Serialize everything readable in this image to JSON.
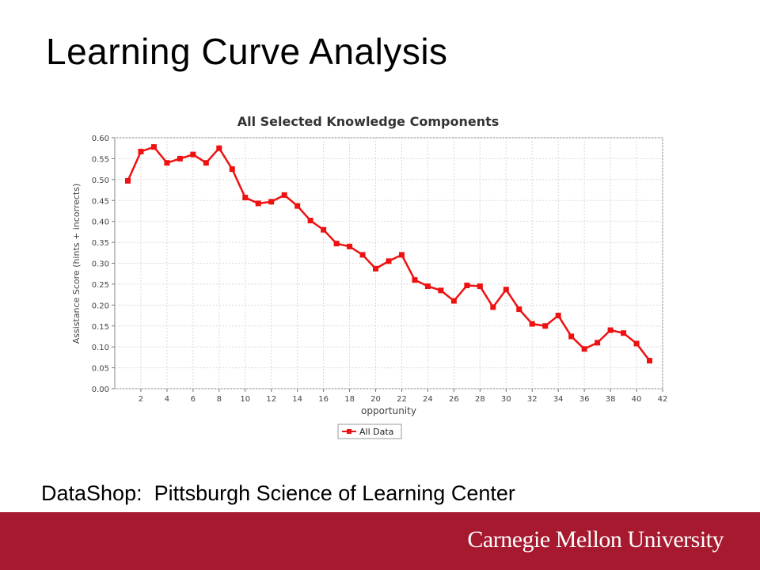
{
  "slide": {
    "title": "Learning Curve Analysis",
    "caption": "DataShop:  Pittsburgh Science of Learning Center",
    "brand": "Carnegie Mellon University"
  },
  "colors": {
    "series": "#ee1111",
    "footer": "#a6192e",
    "grid": "#d9d9d9"
  },
  "chart_data": {
    "type": "line",
    "title": "All Selected Knowledge Components",
    "xlabel": "opportunity",
    "ylabel": "Assistance Score (hints + incorrects)",
    "xlim": [
      0,
      42
    ],
    "ylim": [
      0,
      0.6
    ],
    "xticks": [
      2,
      4,
      6,
      8,
      10,
      12,
      14,
      16,
      18,
      20,
      22,
      24,
      26,
      28,
      30,
      32,
      34,
      36,
      38,
      40,
      42
    ],
    "yticks": [
      "0.00",
      "0.05",
      "0.10",
      "0.15",
      "0.20",
      "0.25",
      "0.30",
      "0.35",
      "0.40",
      "0.45",
      "0.50",
      "0.55",
      "0.60"
    ],
    "grid": true,
    "legend_position": "bottom-center",
    "series": [
      {
        "name": "All Data",
        "x": [
          1,
          2,
          3,
          4,
          5,
          6,
          7,
          8,
          9,
          10,
          11,
          12,
          13,
          14,
          15,
          16,
          17,
          18,
          19,
          20,
          21,
          22,
          23,
          24,
          25,
          26,
          27,
          28,
          29,
          30,
          31,
          32,
          33,
          34,
          35,
          36,
          37,
          38,
          39,
          40,
          41
        ],
        "values": [
          0.497,
          0.567,
          0.578,
          0.54,
          0.55,
          0.56,
          0.54,
          0.575,
          0.525,
          0.457,
          0.443,
          0.447,
          0.463,
          0.437,
          0.402,
          0.38,
          0.347,
          0.34,
          0.32,
          0.287,
          0.305,
          0.32,
          0.26,
          0.245,
          0.235,
          0.21,
          0.247,
          0.245,
          0.195,
          0.237,
          0.19,
          0.155,
          0.15,
          0.175,
          0.125,
          0.095,
          0.11,
          0.14,
          0.133,
          0.108,
          0.067
        ]
      }
    ]
  }
}
